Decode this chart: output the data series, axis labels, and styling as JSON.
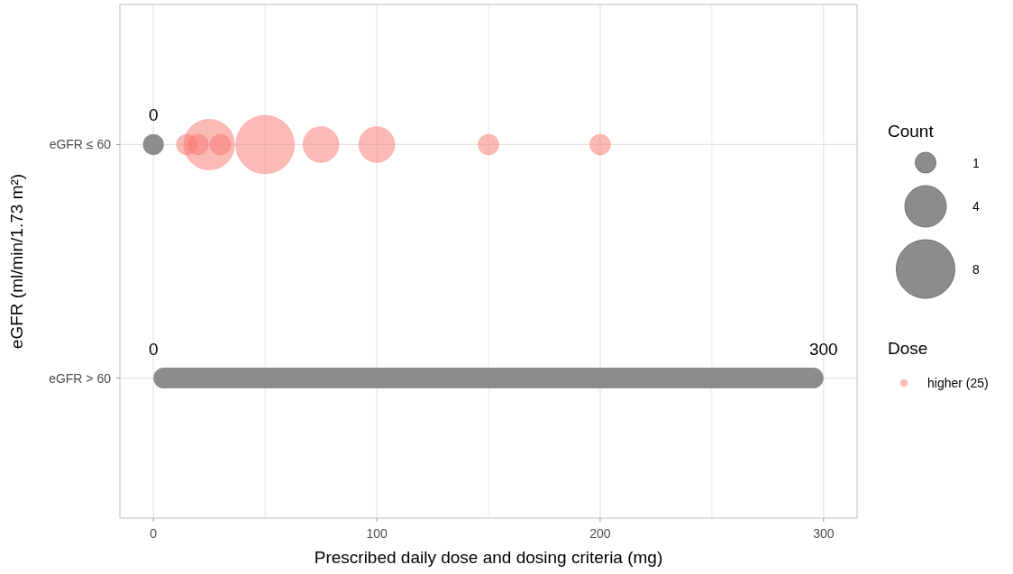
{
  "chart_data": {
    "type": "bubble",
    "orientation": "horizontal",
    "xlabel": "Prescribed daily dose and dosing criteria (mg)",
    "ylabel": "eGFR (ml/min/1.73 m²)",
    "categories": [
      "eGFR ≤ 60",
      "eGFR > 60"
    ],
    "legend_title": [
      "Count",
      "Dose"
    ],
    "size_legend": [
      1,
      4,
      8
    ],
    "series": [
      {
        "type": "bar",
        "color": "#8c8c8c",
        "base": [
          null,
          0
        ],
        "values": [
          null,
          300
        ]
      },
      {
        "color": "#8c8c8c",
        "values": [
          0,
          null
        ],
        "sizes": [
          1,
          null
        ],
        "value_labels": [
          "0",
          null
        ]
      },
      {
        "name": "higher (25)",
        "color": "#f8766d",
        "values": [
          15,
          null
        ],
        "sizes": [
          1,
          null
        ]
      },
      {
        "color": "#f8766d",
        "values": [
          20,
          null
        ],
        "sizes": [
          1,
          null
        ]
      },
      {
        "color": "#f8766d",
        "values": [
          25,
          null
        ],
        "sizes": [
          6,
          null
        ]
      },
      {
        "color": "#f8766d",
        "values": [
          30,
          null
        ],
        "sizes": [
          1,
          null
        ]
      },
      {
        "color": "#f8766d",
        "values": [
          50,
          null
        ],
        "sizes": [
          8,
          null
        ]
      },
      {
        "color": "#f8766d",
        "values": [
          75,
          null
        ],
        "sizes": [
          3,
          null
        ]
      },
      {
        "color": "#f8766d",
        "values": [
          100,
          null
        ],
        "sizes": [
          3,
          null
        ]
      },
      {
        "color": "#f8766d",
        "values": [
          150,
          null
        ],
        "sizes": [
          1,
          null
        ]
      },
      {
        "color": "#f8766d",
        "values": [
          200,
          null
        ],
        "sizes": [
          1,
          null
        ]
      }
    ],
    "annotations": [
      {
        "text": "0",
        "x": 0,
        "y": "eGFR > 60"
      },
      {
        "text": "300",
        "x": 300,
        "y": "eGFR > 60"
      }
    ],
    "xlim": [
      -15,
      315
    ],
    "xticks": [
      {
        "value": 0,
        "label": "0"
      },
      {
        "value": 50,
        "label": null
      },
      {
        "value": 100,
        "label": "100"
      },
      {
        "value": 150,
        "label": null
      },
      {
        "value": 200,
        "label": "200"
      },
      {
        "value": 250,
        "label": null
      },
      {
        "value": 300,
        "label": "300"
      }
    ],
    "grid": true,
    "legend": "right"
  }
}
